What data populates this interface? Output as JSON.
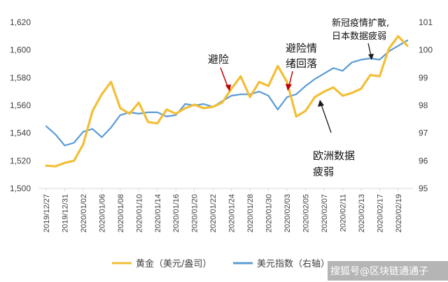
{
  "chart_data": {
    "type": "line",
    "categories": [
      "2019/12/27",
      "2019/12/30",
      "2019/12/31",
      "2020/01/01",
      "2020/01/02",
      "2020/01/03",
      "2020/01/06",
      "2020/01/07",
      "2020/01/08",
      "2020/01/09",
      "2020/01/10",
      "2020/01/13",
      "2020/01/14",
      "2020/01/15",
      "2020/01/16",
      "2020/01/17",
      "2020/01/20",
      "2020/01/21",
      "2020/01/22",
      "2020/01/23",
      "2020/01/24",
      "2020/01/27",
      "2020/01/28",
      "2020/01/29",
      "2020/01/30",
      "2020/01/31",
      "2020/02/03",
      "2020/02/04",
      "2020/02/05",
      "2020/02/06",
      "2020/02/07",
      "2020/02/10",
      "2020/02/11",
      "2020/02/12",
      "2020/02/13",
      "2020/02/14",
      "2020/02/17",
      "2020/02/18",
      "2020/02/19",
      "2020/02/20"
    ],
    "x_tick_labels": [
      "2019/12/27",
      "2019/12/31",
      "2020/01/02",
      "2020/01/06",
      "2020/01/08",
      "2020/01/10",
      "2020/01/14",
      "2020/01/16",
      "2020/01/20",
      "2020/01/22",
      "2020/01/24",
      "2020/01/28",
      "2020/01/30",
      "2020/02/03",
      "2020/02/05",
      "2020/02/07",
      "2020/02/11",
      "2020/02/13",
      "2020/02/17",
      "2020/02/19"
    ],
    "series": [
      {
        "name": "黄金（美元/盎司）",
        "axis": "left",
        "color": "#F2BE34",
        "values": [
          1516.5,
          1516,
          1518.5,
          1520,
          1532,
          1556,
          1568,
          1577,
          1558,
          1554,
          1562,
          1548,
          1547,
          1557,
          1554,
          1558,
          1560.5,
          1558,
          1559,
          1562,
          1572,
          1581,
          1566,
          1577,
          1574,
          1588.5,
          1577,
          1552,
          1556,
          1566,
          1570,
          1573,
          1567,
          1569,
          1572,
          1582,
          1581,
          1601,
          1610,
          1603
        ]
      },
      {
        "name": "美元指数（右轴）",
        "axis": "right",
        "color": "#5B9BD5",
        "values": [
          97.25,
          96.95,
          96.55,
          96.65,
          97.05,
          97.15,
          96.85,
          97.2,
          97.65,
          97.75,
          97.7,
          97.75,
          97.75,
          97.6,
          97.65,
          98.05,
          98.0,
          98.05,
          97.95,
          98.15,
          98.35,
          98.4,
          98.4,
          98.5,
          98.35,
          97.85,
          98.3,
          98.4,
          98.7,
          98.95,
          99.15,
          99.35,
          99.25,
          99.55,
          99.65,
          99.7,
          99.65,
          99.95,
          100.15,
          100.35
        ]
      }
    ],
    "ylim_left": [
      1500,
      1620
    ],
    "yticks_left": [
      "1,500",
      "1,520",
      "1,540",
      "1,560",
      "1,580",
      "1,600",
      "1,620"
    ],
    "ylim_right": [
      95,
      101
    ],
    "yticks_right": [
      "95",
      "96",
      "97",
      "98",
      "99",
      "100",
      "101"
    ],
    "grid": false,
    "legend": "bottom",
    "annotations": {
      "safe_haven": "避险",
      "safe_haven_fade_line1": "避险情",
      "safe_haven_fade_line2": "绪回落",
      "epidemic_line1": "新冠疫情扩散,",
      "epidemic_line2": "日本数据疲弱",
      "europe_line1": "欧洲数据",
      "europe_line2": "疲弱"
    }
  },
  "legend": {
    "gold_label": "黄金（美元/盎司）",
    "usd_label": "美元指数（右轴）"
  },
  "watermark": "搜狐号@区块链通通子"
}
